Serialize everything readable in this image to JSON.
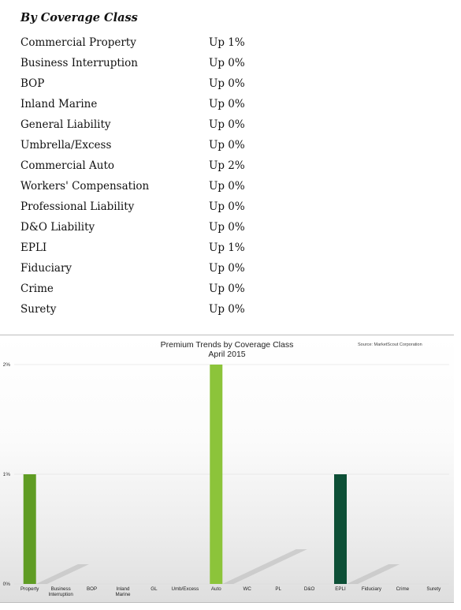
{
  "heading": "By Coverage Class",
  "rows": [
    {
      "cls": "Commercial Property",
      "chg": "Up 1%"
    },
    {
      "cls": "Business Interruption",
      "chg": "Up 0%"
    },
    {
      "cls": "BOP",
      "chg": "Up 0%"
    },
    {
      "cls": "Inland Marine",
      "chg": "Up 0%"
    },
    {
      "cls": "General Liability",
      "chg": "Up 0%"
    },
    {
      "cls": "Umbrella/Excess",
      "chg": "Up 0%"
    },
    {
      "cls": "Commercial Auto",
      "chg": "Up 2%"
    },
    {
      "cls": "Workers' Compensation",
      "chg": "Up 0%"
    },
    {
      "cls": "Professional Liability",
      "chg": "Up 0%"
    },
    {
      "cls": "D&O Liability",
      "chg": "Up 0%"
    },
    {
      "cls": "EPLI",
      "chg": "Up 1%"
    },
    {
      "cls": "Fiduciary",
      "chg": "Up 0%"
    },
    {
      "cls": "Crime",
      "chg": "Up 0%"
    },
    {
      "cls": "Surety",
      "chg": "Up 0%"
    }
  ],
  "chart_data": {
    "type": "bar",
    "title": "Premium Trends by Coverage Class",
    "subtitle": "April 2015",
    "source": "Source: MarketScout Corporation",
    "categories": [
      [
        "Property"
      ],
      [
        "Business",
        "Interruption"
      ],
      [
        "BOP"
      ],
      [
        "Inland",
        "Marine"
      ],
      [
        "GL"
      ],
      [
        "Umb/Excess"
      ],
      [
        "Auto"
      ],
      [
        "WC"
      ],
      [
        "PL"
      ],
      [
        "D&O"
      ],
      [
        "EPLI"
      ],
      [
        "Fiduciary"
      ],
      [
        "Crime"
      ],
      [
        "Surety"
      ]
    ],
    "values": [
      1,
      0,
      0,
      0,
      0,
      0,
      2,
      0,
      0,
      0,
      1,
      0,
      0,
      0
    ],
    "bar_colors": [
      "#5f9c23",
      "#5f9c23",
      "#5f9c23",
      "#5f9c23",
      "#5f9c23",
      "#5f9c23",
      "#8cc43a",
      "#8cc43a",
      "#8cc43a",
      "#8cc43a",
      "#0d4f36",
      "#0d4f36",
      "#0d4f36",
      "#0d4f36"
    ],
    "yticks": [
      "0%",
      "1%",
      "2%"
    ],
    "ylim": [
      0,
      2
    ],
    "grid": true,
    "legend": "none"
  }
}
